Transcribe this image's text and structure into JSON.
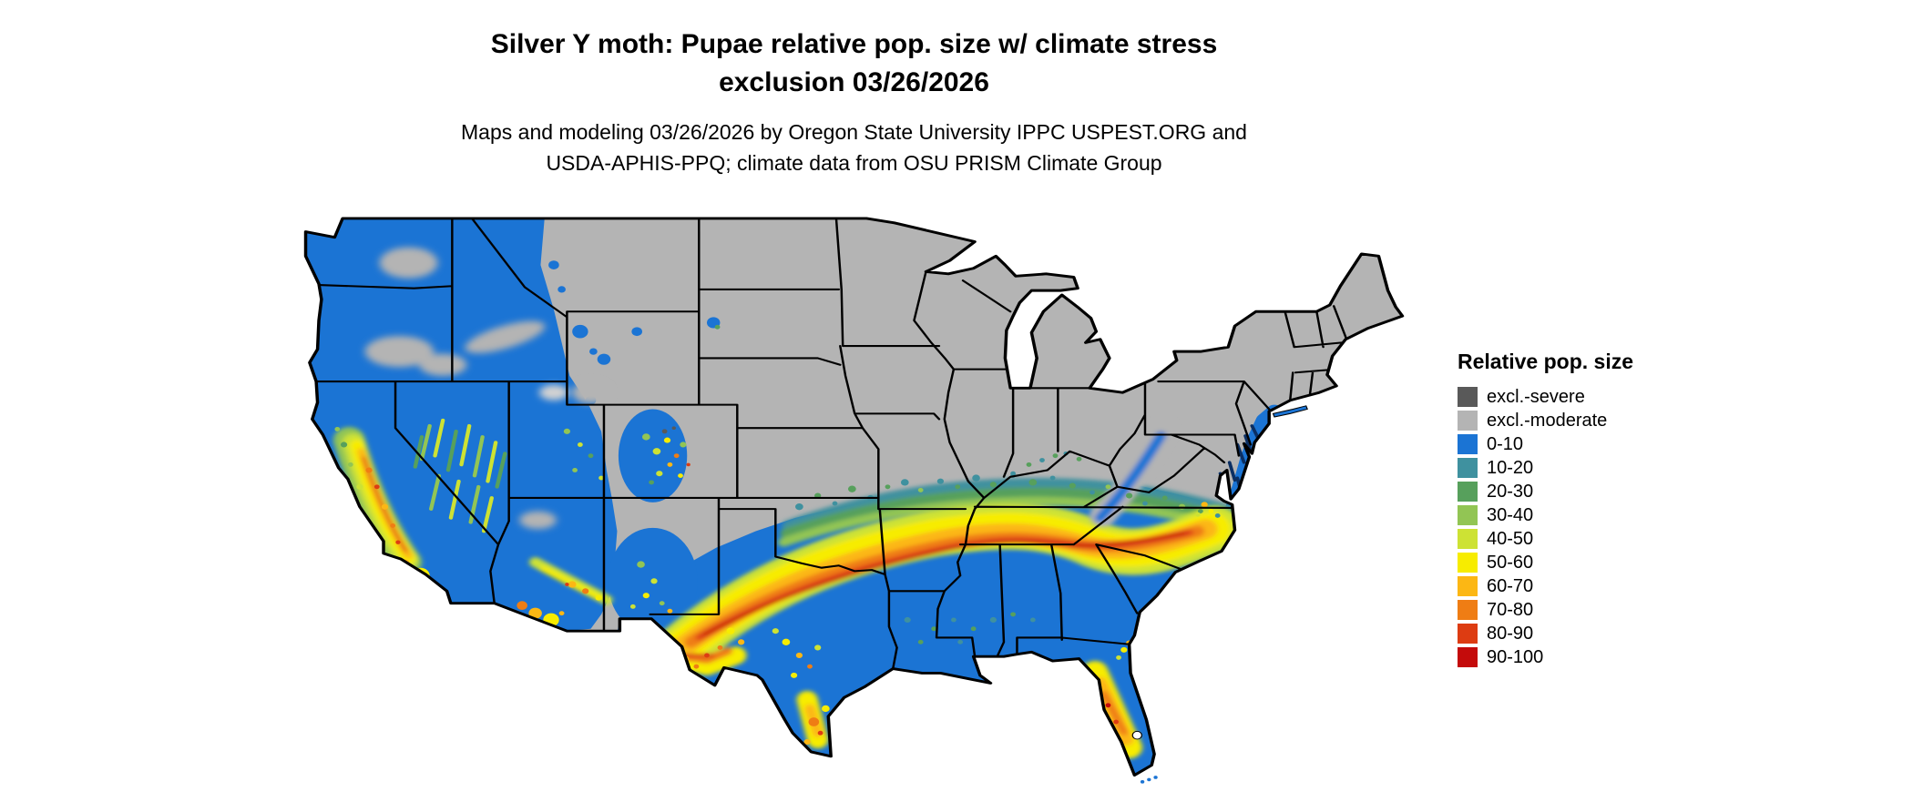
{
  "header": {
    "title_line1": "Silver Y moth: Pupae relative pop. size w/ climate stress",
    "title_line2": "exclusion 03/26/2026",
    "subtitle_line1": "Maps and modeling 03/26/2026 by Oregon State University IPPC USPEST.ORG and",
    "subtitle_line2": "USDA-APHIS-PPQ; climate data from OSU PRISM Climate Group"
  },
  "map": {
    "region": "Continental United States",
    "background_color": "#ffffff",
    "border_color": "#000000"
  },
  "legend": {
    "title": "Relative pop. size",
    "items": [
      {
        "key": "severe",
        "label": "excl.-severe",
        "color": "#595959"
      },
      {
        "key": "moderate",
        "label": "excl.-moderate",
        "color": "#b4b4b4"
      },
      {
        "key": "b0",
        "label": "0-10",
        "color": "#1b74d4"
      },
      {
        "key": "t10",
        "label": "10-20",
        "color": "#3f919f"
      },
      {
        "key": "g20",
        "label": "20-30",
        "color": "#57a05c"
      },
      {
        "key": "g30",
        "label": "30-40",
        "color": "#92c554"
      },
      {
        "key": "g40",
        "label": "40-50",
        "color": "#cde234"
      },
      {
        "key": "y50",
        "label": "50-60",
        "color": "#f7ec00"
      },
      {
        "key": "a60",
        "label": "60-70",
        "color": "#fcb714"
      },
      {
        "key": "o70",
        "label": "70-80",
        "color": "#ef7d14"
      },
      {
        "key": "r80",
        "label": "80-90",
        "color": "#dd3c12"
      },
      {
        "key": "r90",
        "label": "90-100",
        "color": "#c40b0b"
      }
    ]
  }
}
